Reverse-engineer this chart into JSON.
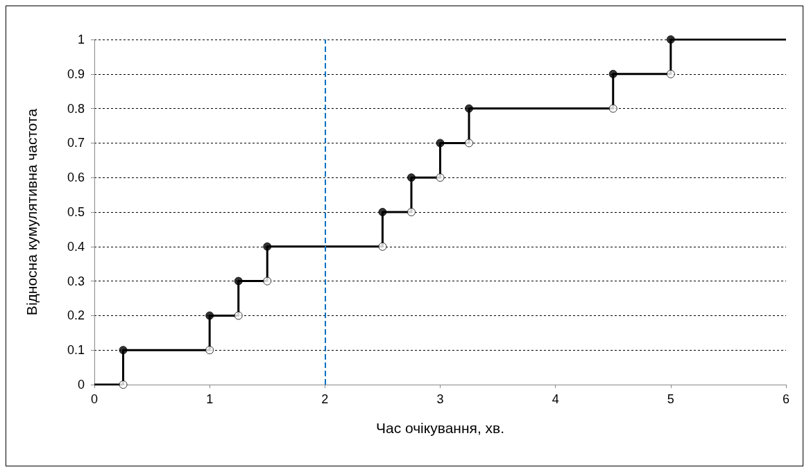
{
  "chart_data": {
    "type": "step",
    "xlabel": "Час очікування, хв.",
    "ylabel": "Відносна кумулятивна частота",
    "xlim": [
      0,
      6
    ],
    "xticks": [
      0,
      1,
      2,
      3,
      4,
      5,
      6
    ],
    "ylim": [
      0,
      1
    ],
    "yticks": [
      0,
      0.1,
      0.2,
      0.3,
      0.4,
      0.5,
      0.6,
      0.7,
      0.8,
      0.9,
      1
    ],
    "grid": "y",
    "series": [
      {
        "color": "#000000",
        "marker": "none",
        "x": [
          0,
          0.25,
          1,
          1.25,
          1.5,
          2.5,
          2.75,
          3,
          3.25,
          4.5,
          5,
          6
        ],
        "values": [
          0,
          0.1,
          0.2,
          0.3,
          0.4,
          0.5,
          0.6,
          0.7,
          0.8,
          0.9,
          1,
          1
        ]
      },
      {
        "type": "scatter",
        "color": "#000000",
        "marker": "circle",
        "x": [
          0.25,
          1,
          1.25,
          1.5,
          2.5,
          2.75,
          3,
          3.25,
          4.5,
          5
        ],
        "values": [
          0.1,
          0.2,
          0.3,
          0.4,
          0.5,
          0.6,
          0.7,
          0.8,
          0.9,
          1
        ]
      },
      {
        "type": "scatter",
        "color": "#ffffff",
        "marker": "circle",
        "x": [
          0.25,
          1,
          1.25,
          1.5,
          2.5,
          2.75,
          3,
          3.25,
          4.5,
          5
        ],
        "values": [
          0,
          0.1,
          0.2,
          0.3,
          0.4,
          0.5,
          0.6,
          0.7,
          0.8,
          0.9
        ]
      }
    ],
    "ref_lines": [
      {
        "axis": "x",
        "value": 2,
        "label": null,
        "color": "#0070c0",
        "line_style": "dashed"
      }
    ]
  }
}
